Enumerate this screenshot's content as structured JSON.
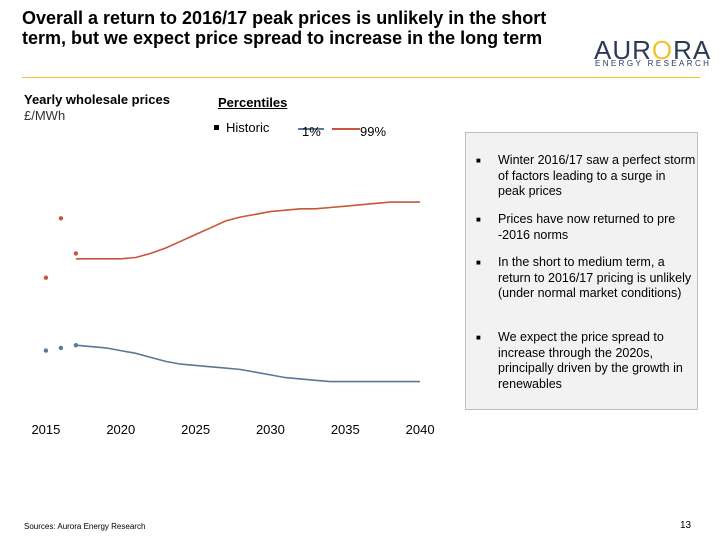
{
  "slide": {
    "title": "Overall a return to 2016/17 peak prices is unlikely in the short term, but we expect price spread to increase in the long term",
    "source": "Sources: Aurora Energy Research",
    "page_number": "13"
  },
  "logo": {
    "wordmark": "AURORA",
    "subtitle": "ENERGY RESEARCH"
  },
  "chart": {
    "title": "Yearly wholesale prices",
    "unit": "£/MWh",
    "percentiles_title": "Percentiles",
    "legend": {
      "historic": "Historic",
      "p1": "1%",
      "p99": "99%"
    }
  },
  "chart_data": {
    "type": "line",
    "title": "Yearly wholesale prices",
    "ylabel": "£/MWh",
    "x_ticks": [
      2015,
      2020,
      2025,
      2030,
      2035,
      2040
    ],
    "xlim": [
      2013,
      2043
    ],
    "ylim": [
      0,
      100
    ],
    "series": [
      {
        "name": "Historic",
        "color": "#c8563a",
        "style": "markers",
        "points": [
          [
            2015,
            49
          ],
          [
            2016,
            71
          ],
          [
            2017,
            58
          ]
        ]
      },
      {
        "name": "Historic",
        "color": "#5d7796",
        "style": "markers",
        "points": [
          [
            2015,
            22
          ],
          [
            2016,
            23
          ],
          [
            2017,
            24
          ]
        ]
      },
      {
        "name": "99%",
        "color": "#c8563a",
        "style": "line",
        "points": [
          [
            2017,
            56
          ],
          [
            2018,
            56
          ],
          [
            2019,
            56
          ],
          [
            2020,
            56
          ],
          [
            2021,
            56.5
          ],
          [
            2022,
            58
          ],
          [
            2023,
            60
          ],
          [
            2024,
            62.5
          ],
          [
            2025,
            65
          ],
          [
            2026,
            67.5
          ],
          [
            2027,
            70
          ],
          [
            2028,
            71.5
          ],
          [
            2029,
            72.5
          ],
          [
            2030,
            73.5
          ],
          [
            2031,
            74
          ],
          [
            2032,
            74.5
          ],
          [
            2033,
            74.5
          ],
          [
            2034,
            75
          ],
          [
            2035,
            75.5
          ],
          [
            2036,
            76
          ],
          [
            2037,
            76.5
          ],
          [
            2038,
            77
          ],
          [
            2039,
            77
          ],
          [
            2040,
            77
          ]
        ]
      },
      {
        "name": "1%",
        "color": "#5d7796",
        "style": "line",
        "points": [
          [
            2017,
            24
          ],
          [
            2018,
            23.5
          ],
          [
            2019,
            23
          ],
          [
            2020,
            22
          ],
          [
            2021,
            21
          ],
          [
            2022,
            19.5
          ],
          [
            2023,
            18
          ],
          [
            2024,
            17
          ],
          [
            2025,
            16.5
          ],
          [
            2026,
            16
          ],
          [
            2027,
            15.5
          ],
          [
            2028,
            15
          ],
          [
            2029,
            14
          ],
          [
            2030,
            13
          ],
          [
            2031,
            12
          ],
          [
            2032,
            11.5
          ],
          [
            2033,
            11
          ],
          [
            2034,
            10.5
          ],
          [
            2035,
            10.5
          ],
          [
            2036,
            10.5
          ],
          [
            2037,
            10.5
          ],
          [
            2038,
            10.5
          ],
          [
            2039,
            10.5
          ],
          [
            2040,
            10.5
          ]
        ]
      }
    ]
  },
  "commentary": {
    "bullets": [
      "Winter 2016/17 saw a perfect storm of factors leading to a surge in peak prices",
      "Prices have now returned to pre -2016 norms",
      "In the short to medium term, a return to 2016/17 pricing is unlikely (under normal market conditions)",
      "We expect the price spread to increase through the 2020s, principally driven by the growth in renewables"
    ]
  },
  "colors": {
    "accent_rule": "#f2c12e",
    "logo_text": "#2a3a57",
    "logo_sun": "#f2c12e",
    "p99": "#c8563a",
    "p1": "#5d7796",
    "panel_bg": "#f2f2f2"
  }
}
